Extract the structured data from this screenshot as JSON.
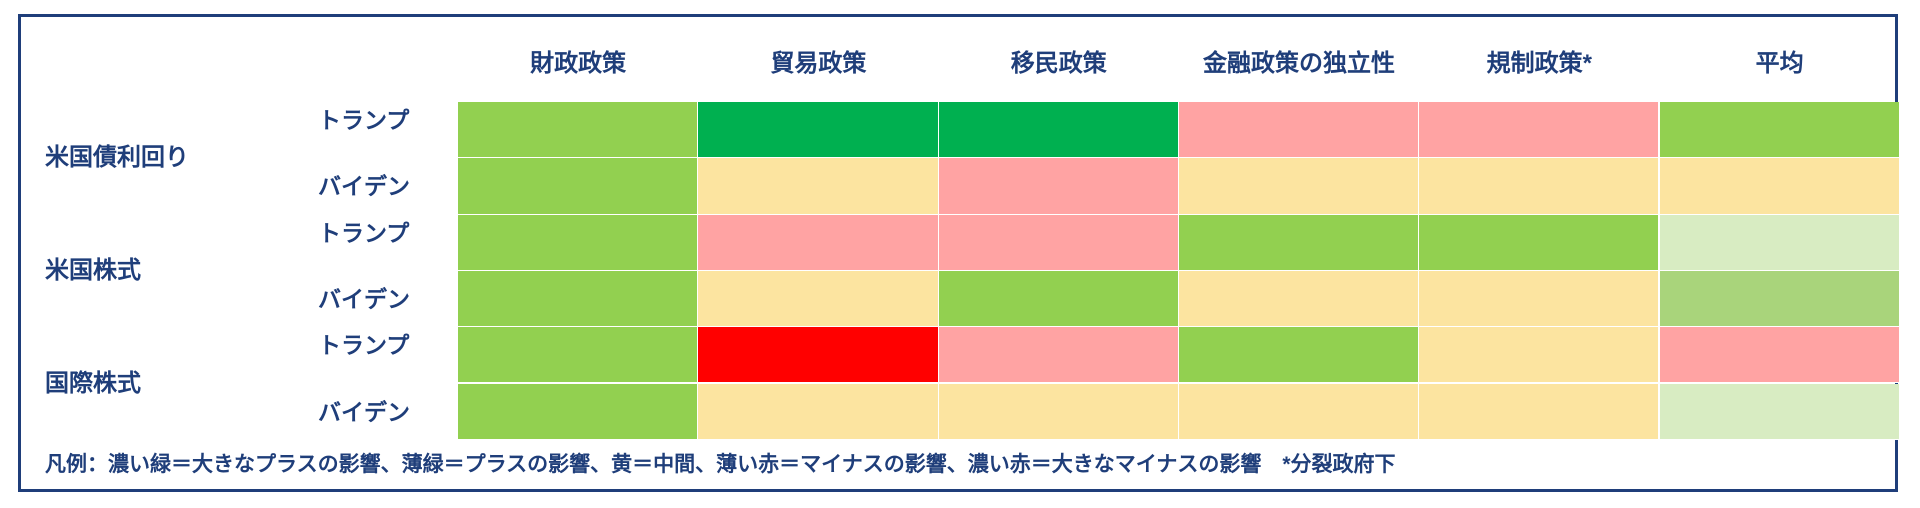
{
  "chart_data": {
    "type": "heatmap",
    "columns": [
      "財政政策",
      "貿易政策",
      "移民政策",
      "金融政策の独立性",
      "規制政策*",
      "平均"
    ],
    "groups": [
      {
        "label": "米国債利回り",
        "rows": [
          {
            "label": "トランプ",
            "values": [
              "light-green",
              "dark-green",
              "dark-green",
              "light-red",
              "light-red",
              "light-green"
            ]
          },
          {
            "label": "バイデン",
            "values": [
              "light-green",
              "yellow",
              "light-red",
              "yellow",
              "yellow",
              "yellow"
            ]
          }
        ]
      },
      {
        "label": "米国株式",
        "rows": [
          {
            "label": "トランプ",
            "values": [
              "light-green",
              "light-red",
              "light-red",
              "light-green",
              "light-green",
              "pale-green"
            ]
          },
          {
            "label": "バイデン",
            "values": [
              "light-green",
              "yellow",
              "light-green",
              "yellow",
              "yellow",
              "mid-green"
            ]
          }
        ]
      },
      {
        "label": "国際株式",
        "rows": [
          {
            "label": "トランプ",
            "values": [
              "light-green",
              "dark-red",
              "light-red",
              "light-green",
              "yellow",
              "light-red"
            ]
          },
          {
            "label": "バイデン",
            "values": [
              "light-green",
              "yellow",
              "yellow",
              "yellow",
              "yellow",
              "pale-green"
            ]
          }
        ]
      }
    ],
    "colors": {
      "dark-green": "#00b050",
      "light-green": "#92d050",
      "mid-green": "#a9d47b",
      "pale-green": "#d8ecc2",
      "yellow": "#fce4a0",
      "light-red": "#ffa3a3",
      "dark-red": "#ff0000"
    },
    "legend": "凡例：濃い緑＝大きなプラスの影響、薄緑＝プラスの影響、黄＝中間、薄い赤＝マイナスの影響、濃い赤＝大きなマイナスの影響　*分裂政府下"
  }
}
